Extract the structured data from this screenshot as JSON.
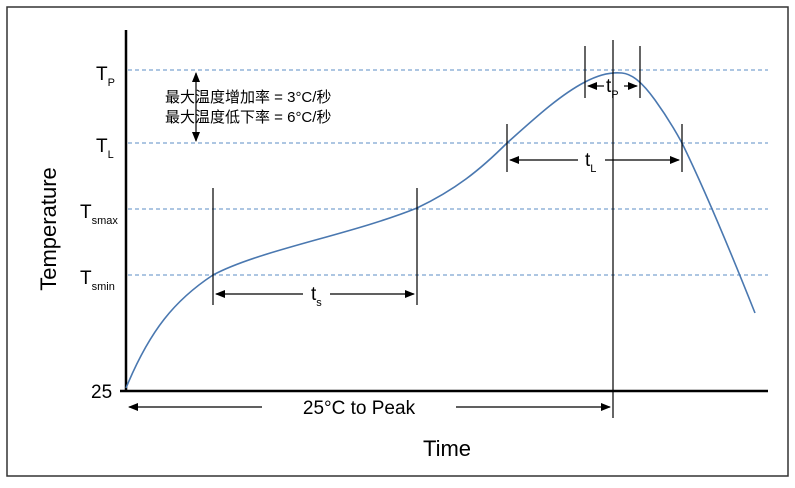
{
  "colors": {
    "curve": "#4a78b0",
    "reference_lines": "#5b8ec4",
    "axes": "#000000",
    "border": "#333333"
  },
  "axes": {
    "y_label": "Temperature",
    "x_label": "Time",
    "origin_label": "25"
  },
  "levels": {
    "tp": {
      "main": "T",
      "sub": "P"
    },
    "tl": {
      "main": "T",
      "sub": "L"
    },
    "tsmax": {
      "main": "T",
      "sub": "smax"
    },
    "tsmin": {
      "main": "T",
      "sub": "smin"
    }
  },
  "notes": {
    "ramp_up": "最大温度增加率 = 3°C/秒",
    "ramp_down": "最大温度低下率 = 6°C/秒"
  },
  "intervals": {
    "tp": {
      "main": "t",
      "sub": "P"
    },
    "tl": {
      "main": "t",
      "sub": "L"
    },
    "ts": {
      "main": "t",
      "sub": "s"
    },
    "to_peak": "25°C to Peak"
  }
}
